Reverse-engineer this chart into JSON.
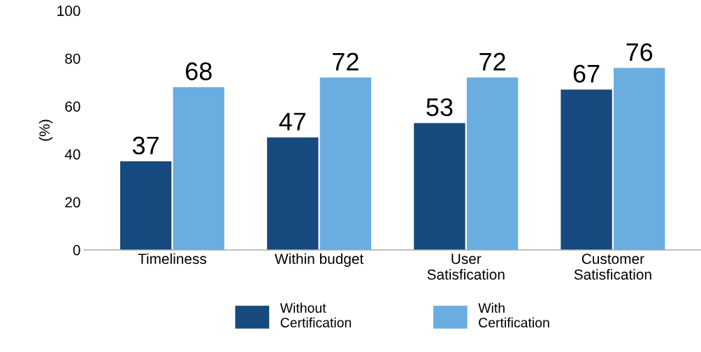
{
  "chart_data": {
    "type": "bar",
    "ylabel": "(%)",
    "categories": [
      "Timeliness",
      "Within budget",
      "User\nSatisfication",
      "Customer\nSatisfication"
    ],
    "series": [
      {
        "name": "Without\nCertification",
        "color": "#174a7e",
        "values": [
          37,
          47,
          53,
          67
        ]
      },
      {
        "name": "With\nCertification",
        "color": "#6aade0",
        "values": [
          68,
          72,
          72,
          76
        ]
      }
    ],
    "ylim": [
      0,
      100
    ],
    "yticks": [
      0,
      20,
      40,
      60,
      80,
      100
    ],
    "grid": false,
    "legend": "bottom",
    "data_labels": true
  }
}
